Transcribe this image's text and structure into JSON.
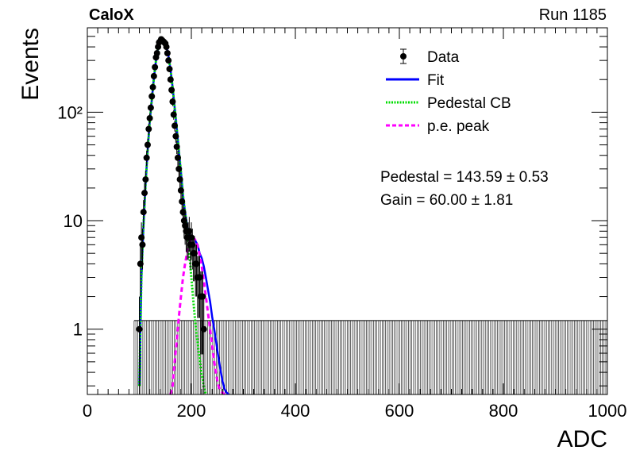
{
  "header": {
    "experiment": "CaloX",
    "run": "Run 1185"
  },
  "chart_data": {
    "type": "scatter",
    "xlabel": "ADC",
    "ylabel": "Events",
    "xlim": [
      0,
      1000
    ],
    "ylim": [
      0.25,
      600
    ],
    "yscale": "log",
    "x_ticks": [
      0,
      200,
      400,
      600,
      800,
      1000
    ],
    "y_ticks": [
      {
        "value": 1,
        "label": "1"
      },
      {
        "value": 10,
        "label": "10"
      },
      {
        "value": 100,
        "label": "10²"
      }
    ],
    "grid": false,
    "legend_position": "top-right",
    "legend": [
      {
        "label": "Data",
        "style": "marker-errorbar",
        "color": "#000000"
      },
      {
        "label": "Fit",
        "style": "solid",
        "color": "#0000ff"
      },
      {
        "label": "Pedestal CB",
        "style": "dotted",
        "color": "#00dd00"
      },
      {
        "label": "p.e. peak",
        "style": "dashed",
        "color": "#ff00ff"
      }
    ],
    "annotations": [
      {
        "label": "Pedestal = 143.59",
        "pm": "±",
        "error": "0.53"
      },
      {
        "label": "Gain = 60.00",
        "pm": "±",
        "error": "1.81"
      }
    ],
    "fit_params": {
      "pedestal": 143.59,
      "pedestal_error": 0.53,
      "gain": 60.0,
      "gain_error": 1.81
    },
    "series": [
      {
        "name": "Data",
        "type": "scatter",
        "points": [
          [
            100,
            1
          ],
          [
            102,
            4
          ],
          [
            104,
            7
          ],
          [
            106,
            6
          ],
          [
            108,
            12
          ],
          [
            110,
            18
          ],
          [
            112,
            24
          ],
          [
            114,
            38
          ],
          [
            116,
            50
          ],
          [
            118,
            70
          ],
          [
            120,
            88
          ],
          [
            122,
            110
          ],
          [
            124,
            140
          ],
          [
            126,
            170
          ],
          [
            128,
            215
          ],
          [
            130,
            260
          ],
          [
            132,
            320
          ],
          [
            134,
            350
          ],
          [
            136,
            400
          ],
          [
            138,
            440
          ],
          [
            140,
            450
          ],
          [
            142,
            470
          ],
          [
            144,
            460
          ],
          [
            146,
            450
          ],
          [
            148,
            440
          ],
          [
            150,
            430
          ],
          [
            152,
            400
          ],
          [
            154,
            350
          ],
          [
            156,
            300
          ],
          [
            158,
            250
          ],
          [
            160,
            200
          ],
          [
            162,
            160
          ],
          [
            164,
            125
          ],
          [
            166,
            95
          ],
          [
            168,
            75
          ],
          [
            170,
            60
          ],
          [
            172,
            48
          ],
          [
            174,
            38
          ],
          [
            176,
            30
          ],
          [
            178,
            24
          ],
          [
            180,
            19
          ],
          [
            182,
            15
          ],
          [
            184,
            12
          ],
          [
            186,
            10
          ],
          [
            188,
            9
          ],
          [
            190,
            8
          ],
          [
            192,
            7
          ],
          [
            194,
            7
          ],
          [
            196,
            8
          ],
          [
            198,
            6
          ],
          [
            200,
            7
          ],
          [
            202,
            6
          ],
          [
            204,
            5
          ],
          [
            206,
            5
          ],
          [
            208,
            4
          ],
          [
            210,
            4
          ],
          [
            212,
            3
          ],
          [
            214,
            3
          ],
          [
            216,
            3
          ],
          [
            218,
            2
          ],
          [
            220,
            2
          ],
          [
            222,
            2
          ],
          [
            224,
            1
          ]
        ]
      },
      {
        "name": "Fit",
        "type": "line",
        "x": [
          100,
          104,
          108,
          112,
          116,
          120,
          124,
          128,
          132,
          136,
          140,
          144,
          148,
          152,
          156,
          160,
          164,
          168,
          172,
          176,
          180,
          184,
          188,
          192,
          196,
          200,
          204,
          208,
          212,
          216,
          220,
          224,
          228,
          232,
          236,
          240,
          244,
          248,
          252,
          256,
          260,
          264,
          268,
          272
        ],
        "y": [
          0.3,
          3,
          9,
          22,
          45,
          82,
          130,
          205,
          300,
          390,
          450,
          470,
          455,
          410,
          330,
          245,
          170,
          110,
          70,
          44,
          28,
          17,
          12,
          9,
          7.5,
          7,
          7,
          6.5,
          6,
          5,
          4.5,
          3.8,
          3,
          2.3,
          1.8,
          1.3,
          1.0,
          0.75,
          0.55,
          0.42,
          0.33,
          0.28,
          0.26,
          0.25
        ]
      },
      {
        "name": "Pedestal CB",
        "type": "line",
        "x": [
          100,
          104,
          108,
          112,
          116,
          120,
          124,
          128,
          132,
          136,
          140,
          144,
          148,
          152,
          156,
          160,
          164,
          168,
          172,
          176,
          180,
          184,
          188,
          192,
          196,
          200,
          204,
          208,
          212,
          216,
          220,
          224,
          228
        ],
        "y": [
          0.3,
          3,
          9,
          22,
          45,
          82,
          130,
          205,
          300,
          390,
          450,
          470,
          455,
          410,
          330,
          245,
          170,
          110,
          70,
          44,
          28,
          17,
          12,
          8,
          5,
          3,
          1.8,
          1.1,
          0.75,
          0.52,
          0.38,
          0.3,
          0.25
        ]
      },
      {
        "name": "p.e. peak",
        "type": "line",
        "x": [
          160,
          164,
          168,
          172,
          176,
          180,
          184,
          188,
          192,
          196,
          200,
          204,
          208,
          212,
          216,
          220,
          224,
          228,
          232,
          236,
          240,
          244,
          248,
          252,
          256,
          260,
          264,
          268
        ],
        "y": [
          0.25,
          0.3,
          0.5,
          0.8,
          1.3,
          2,
          3,
          4,
          5.2,
          6.2,
          6.8,
          7,
          6.6,
          5.8,
          4.8,
          3.8,
          2.8,
          2,
          1.4,
          1.0,
          0.7,
          0.5,
          0.38,
          0.3,
          0.27,
          0.26,
          0.25,
          0.25
        ]
      }
    ],
    "flat_component": {
      "y": 1.2,
      "x_range": [
        90,
        1000
      ]
    }
  }
}
